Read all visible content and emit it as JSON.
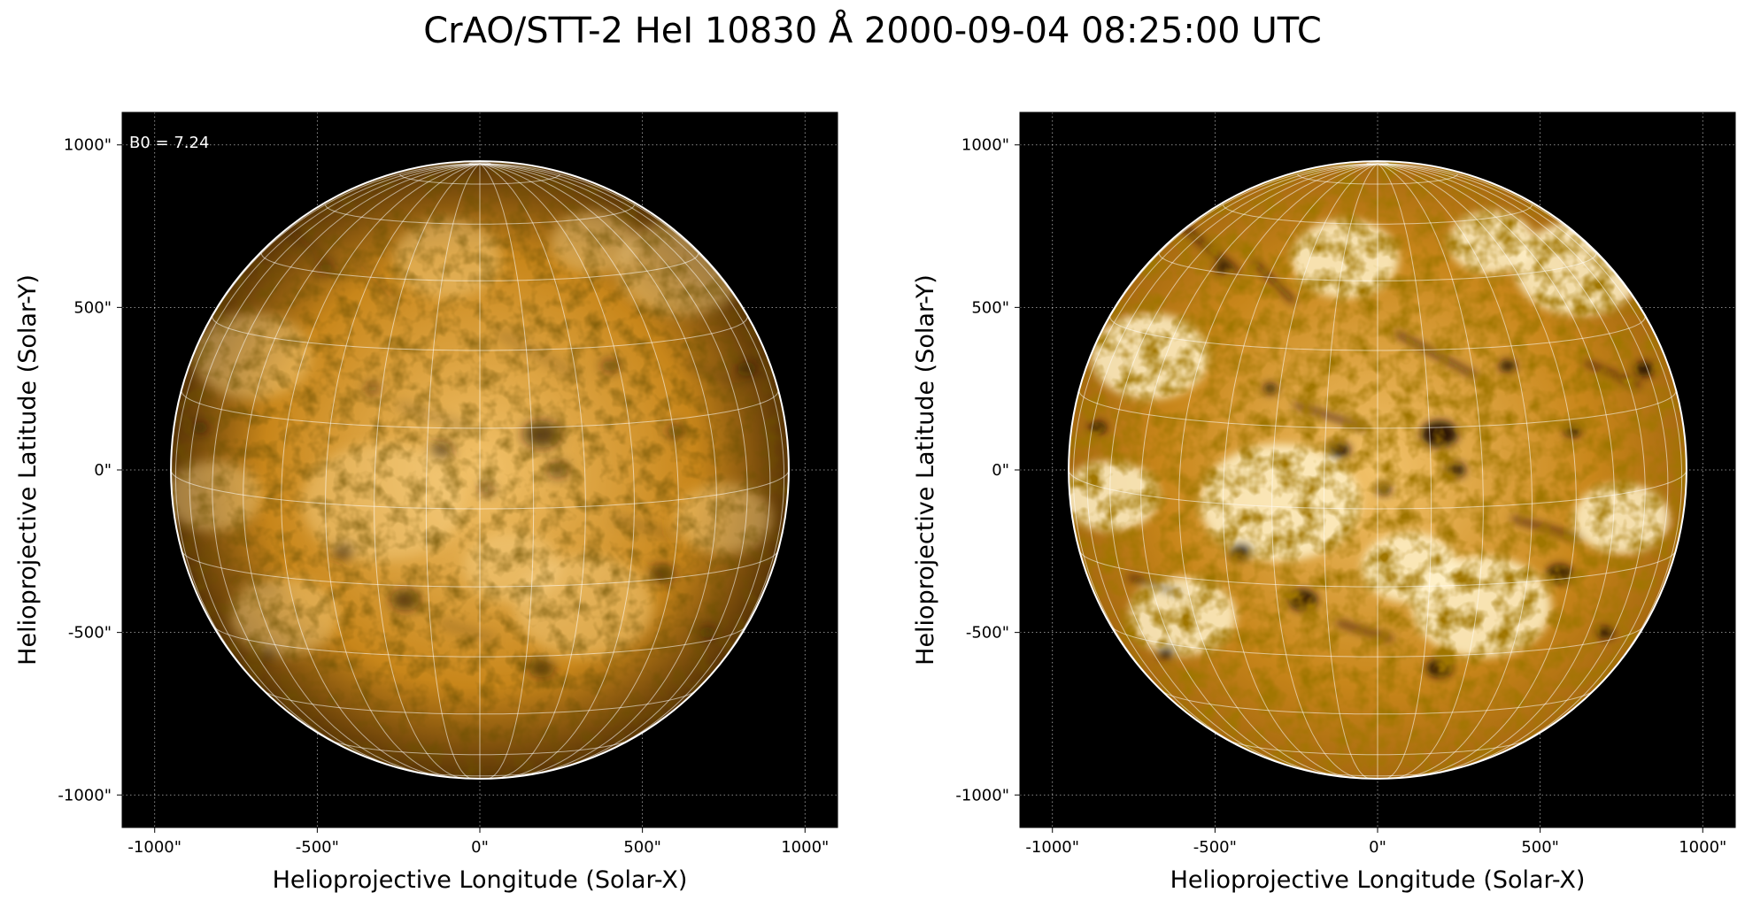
{
  "figure": {
    "title": "CrAO/STT-2 HeI 10830 Å 2000-09-04 08:25:00 UTC"
  },
  "colors": {
    "background": "#000000",
    "disk_base": "#c8861a",
    "disk_light": "#f2c26a",
    "disk_highlight": "#fff1c9",
    "disk_dark": "#241100",
    "grid_line": "#ffffff",
    "limb_line": "#ffffff"
  },
  "panels": [
    {
      "id": "left",
      "annotation": "B0 = 7.24",
      "xlabel": "Helioprojective Longitude (Solar-X)",
      "ylabel": "Helioprojective Latitude (Solar-Y)",
      "xticks": [
        "-1000\"",
        "-500\"",
        "0\"",
        "500\"",
        "1000\""
      ],
      "yticks": [
        "1000\"",
        "500\"",
        "0\"",
        "-500\"",
        "-1000\""
      ],
      "contrast": "normal"
    },
    {
      "id": "right",
      "annotation": "",
      "xlabel": "Helioprojective Longitude (Solar-X)",
      "ylabel": "Helioprojective Latitude (Solar-Y)",
      "xticks": [
        "-1000\"",
        "-500\"",
        "0\"",
        "500\"",
        "1000\""
      ],
      "yticks": [
        "1000\"",
        "500\"",
        "0\"",
        "-500\"",
        "-1000\""
      ],
      "contrast": "enhanced"
    }
  ],
  "solar": {
    "b0_deg": 7.24,
    "radius_arcsec": 950,
    "axis_range_arcsec": [
      -1100,
      1100
    ],
    "tick_values_arcsec": [
      -1000,
      -500,
      0,
      500,
      1000
    ],
    "grid_lon_step_deg": 10,
    "grid_lat_step_deg": 15,
    "dark_features": [
      {
        "x": -230,
        "y": -400,
        "size": 1.0
      },
      {
        "x": 190,
        "y": -610,
        "size": 0.9
      },
      {
        "x": 190,
        "y": 110,
        "size": 1.3
      },
      {
        "x": -120,
        "y": 60,
        "size": 0.8
      },
      {
        "x": 240,
        "y": 0,
        "size": 0.7
      },
      {
        "x": -420,
        "y": -250,
        "size": 0.8
      },
      {
        "x": 560,
        "y": -320,
        "size": 0.9
      },
      {
        "x": -860,
        "y": 130,
        "size": 0.6
      },
      {
        "x": -650,
        "y": -560,
        "size": 0.6
      },
      {
        "x": 820,
        "y": 310,
        "size": 0.7
      },
      {
        "x": 600,
        "y": 120,
        "size": 0.6
      },
      {
        "x": -480,
        "y": 620,
        "size": 0.5
      },
      {
        "x": 400,
        "y": 320,
        "size": 0.6
      },
      {
        "x": -330,
        "y": 250,
        "size": 0.5
      },
      {
        "x": 700,
        "y": -500,
        "size": 0.6
      },
      {
        "x": 20,
        "y": -60,
        "size": 0.5
      }
    ],
    "bright_features": [
      {
        "x": -300,
        "y": -100,
        "size": 1.5
      },
      {
        "x": 320,
        "y": -420,
        "size": 1.3
      },
      {
        "x": -700,
        "y": 350,
        "size": 1.1
      },
      {
        "x": 620,
        "y": 620,
        "size": 1.2
      },
      {
        "x": -100,
        "y": 650,
        "size": 1.0
      },
      {
        "x": 750,
        "y": -150,
        "size": 0.9
      },
      {
        "x": -600,
        "y": -450,
        "size": 1.0
      },
      {
        "x": 100,
        "y": -300,
        "size": 0.9
      },
      {
        "x": 350,
        "y": 700,
        "size": 0.8
      },
      {
        "x": -820,
        "y": -80,
        "size": 0.9
      }
    ]
  }
}
